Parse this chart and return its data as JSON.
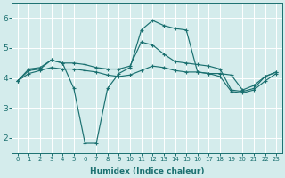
{
  "xlabel": "Humidex (Indice chaleur)",
  "background_color": "#d4ecec",
  "grid_color": "#ffffff",
  "line_color": "#1a7070",
  "xlim": [
    -0.5,
    23.5
  ],
  "ylim": [
    1.5,
    6.5
  ],
  "xticks": [
    0,
    1,
    2,
    3,
    4,
    5,
    6,
    7,
    8,
    9,
    10,
    11,
    12,
    13,
    14,
    15,
    16,
    17,
    18,
    19,
    20,
    21,
    22,
    23
  ],
  "yticks": [
    2,
    3,
    4,
    5,
    6
  ],
  "series": [
    {
      "x": [
        0,
        1,
        2,
        3,
        4,
        5,
        6,
        7,
        8,
        9,
        10,
        11,
        12,
        13,
        14,
        15,
        16,
        17,
        18,
        19,
        20,
        21,
        22,
        23
      ],
      "y": [
        3.9,
        4.3,
        4.35,
        4.6,
        4.5,
        3.65,
        1.82,
        1.82,
        3.65,
        4.15,
        4.35,
        5.6,
        5.92,
        5.75,
        5.65,
        5.6,
        4.2,
        4.15,
        4.15,
        4.1,
        3.6,
        3.75,
        4.05,
        4.2
      ]
    },
    {
      "x": [
        0,
        1,
        2,
        3,
        4,
        5,
        6,
        7,
        8,
        9,
        10,
        11,
        12,
        13,
        14,
        15,
        16,
        17,
        18,
        19,
        20,
        21,
        22,
        23
      ],
      "y": [
        3.9,
        4.25,
        4.3,
        4.6,
        4.5,
        4.5,
        4.45,
        4.35,
        4.3,
        4.3,
        4.4,
        5.2,
        5.1,
        4.8,
        4.55,
        4.5,
        4.45,
        4.4,
        4.3,
        3.6,
        3.55,
        3.65,
        4.05,
        4.2
      ]
    },
    {
      "x": [
        0,
        1,
        2,
        3,
        4,
        5,
        6,
        7,
        8,
        9,
        10,
        11,
        12,
        13,
        14,
        15,
        16,
        17,
        18,
        19,
        20,
        21,
        22,
        23
      ],
      "y": [
        3.9,
        4.15,
        4.25,
        4.35,
        4.3,
        4.3,
        4.25,
        4.2,
        4.1,
        4.05,
        4.1,
        4.25,
        4.4,
        4.35,
        4.25,
        4.2,
        4.2,
        4.15,
        4.05,
        3.55,
        3.5,
        3.6,
        3.9,
        4.15
      ]
    }
  ]
}
